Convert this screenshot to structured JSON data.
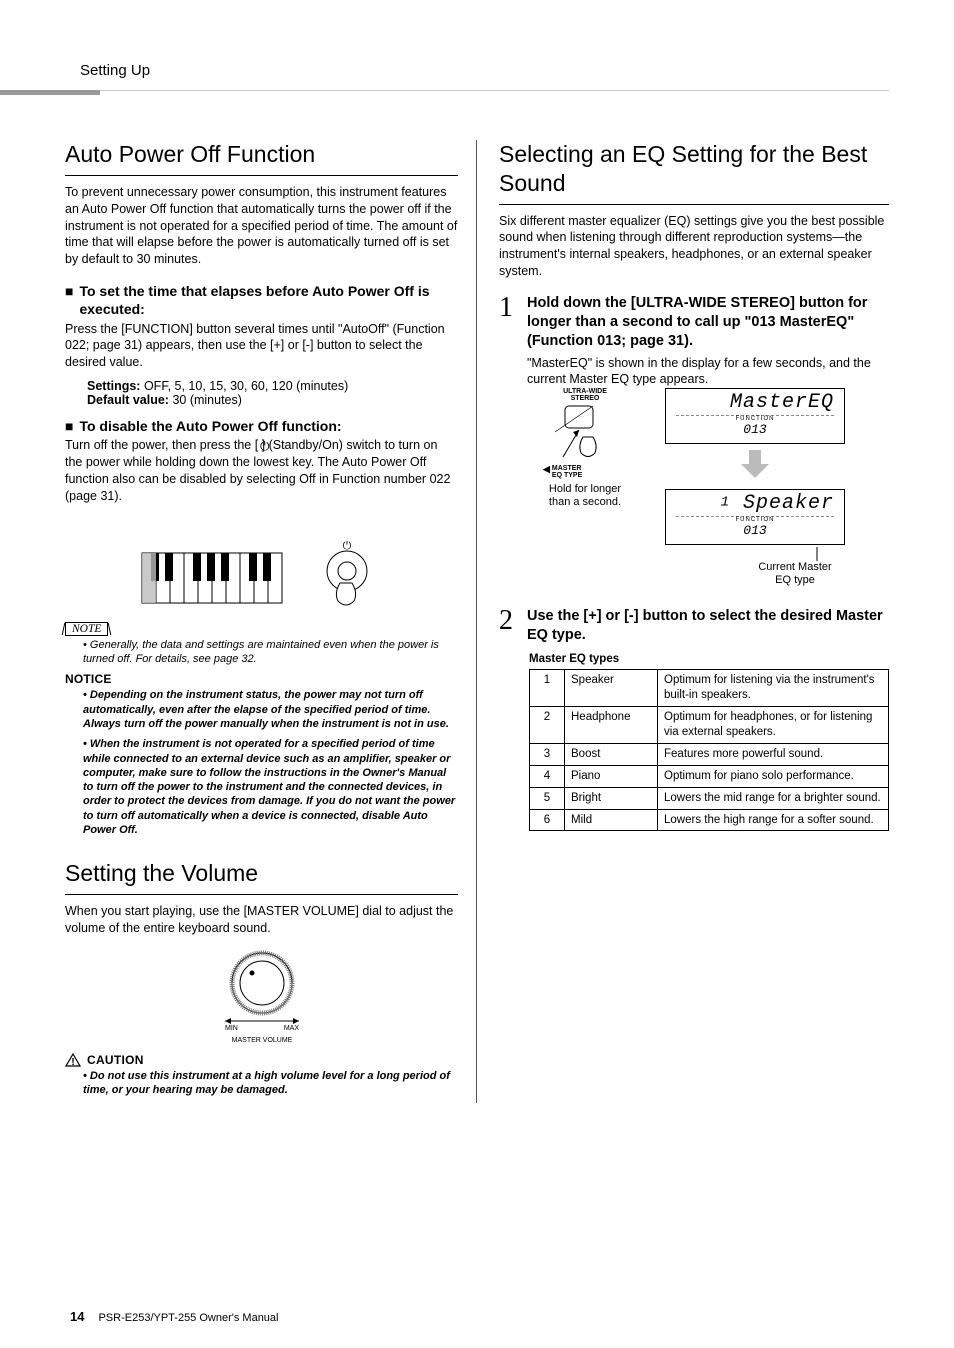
{
  "running_head": "Setting Up",
  "footer": {
    "page": "14",
    "manual": "PSR-E253/YPT-255  Owner's Manual"
  },
  "left": {
    "h1": "Auto Power Off Function",
    "p1": "To prevent unnecessary power consumption, this instrument features an Auto Power Off function that automatically turns the power off if the instrument is not operated for a specified period of time. The amount of time that will elapse before the power is automatically turned off is set by default to 30 minutes.",
    "sub1": "To set the time that elapses before Auto Power Off is executed:",
    "sub1_body": "Press the [FUNCTION] button several times until \"AutoOff\" (Function 022; page 31) appears, then use the [+] or [-] button to select the desired value.",
    "settings_label": "Settings:",
    "settings_val": " OFF, 5, 10, 15, 30, 60, 120 (minutes)",
    "default_label": "Default value:",
    "default_val": " 30 (minutes)",
    "sub2": "To disable the Auto Power Off function:",
    "sub2_body": "Turn off the power, then press the [      ] (Standby/On) switch to turn on the power while holding down the lowest key. The Auto Power Off function also can be disabled by selecting Off in Function number 022 (page 31).",
    "note_label": "NOTE",
    "note_body": "• Generally, the data and settings are maintained even when the power is turned off. For details, see page 32.",
    "notice_head": "NOTICE",
    "notice1": "• Depending on the instrument status, the power may not turn off automatically, even after the elapse of the specified period of time. Always turn off the power manually when the instrument is not in use.",
    "notice2": "• When the instrument is not operated for a specified period of time while connected to an external device such as an amplifier, speaker or computer, make sure to follow the instructions in the Owner's Manual to turn off the power to the instrument and the connected devices, in order to protect the devices from damage. If you do not want the power to turn off automatically when a device is connected, disable Auto Power Off.",
    "h2": "Setting the Volume",
    "vol_body": "When you start playing, use the [MASTER VOLUME] dial to adjust the volume of the entire keyboard sound.",
    "dial_min": "MIN",
    "dial_max": "MAX",
    "dial_label": "MASTER VOLUME",
    "caution_head": "CAUTION",
    "caution_body": "• Do not use this instrument at a high volume level for a long period of time, or your hearing may be damaged."
  },
  "right": {
    "h1": "Selecting an EQ Setting for the Best Sound",
    "p1": "Six different master equalizer (EQ) settings give you the best possible sound when listening through different reproduction systems—the instrument's internal speakers, headphones, or an external speaker system.",
    "step1_num": "1",
    "step1_head": "Hold down the [ULTRA-WIDE STEREO] button for longer than a second to call up \"013 MasterEQ\" (Function 013; page 31).",
    "step1_body": "\"MasterEQ\" is shown in the display for a few seconds, and the current Master EQ type appears.",
    "btn_top": "ULTRA-WIDE",
    "btn_top2": "STEREO",
    "btn_bottom": "MASTER",
    "btn_bottom2": "EQ TYPE",
    "hold_text1": "Hold for longer",
    "hold_text2": "than a second.",
    "lcd1_main": "MasterEQ",
    "lcd_func": "FUNCTION",
    "lcd1_num": "013",
    "lcd2_main": "Speaker",
    "lcd2_pre": "1",
    "lcd2_num": "013",
    "current_label1": "Current Master",
    "current_label2": "EQ type",
    "step2_num": "2",
    "step2_head": "Use the [+] or [-] button to select the desired Master EQ type.",
    "table_caption": "Master EQ types",
    "rows": [
      {
        "n": "1",
        "name": "Speaker",
        "desc": "Optimum for listening via the instrument's built-in speakers."
      },
      {
        "n": "2",
        "name": "Headphone",
        "desc": "Optimum for headphones, or for listening via external speakers."
      },
      {
        "n": "3",
        "name": "Boost",
        "desc": "Features more powerful sound."
      },
      {
        "n": "4",
        "name": "Piano",
        "desc": "Optimum for piano solo performance."
      },
      {
        "n": "5",
        "name": "Bright",
        "desc": "Lowers the mid range for a brighter sound."
      },
      {
        "n": "6",
        "name": "Mild",
        "desc": "Lowers the high range for a softer sound."
      }
    ]
  },
  "colors": {
    "accent_gray": "#999999",
    "rule": "#000000"
  }
}
